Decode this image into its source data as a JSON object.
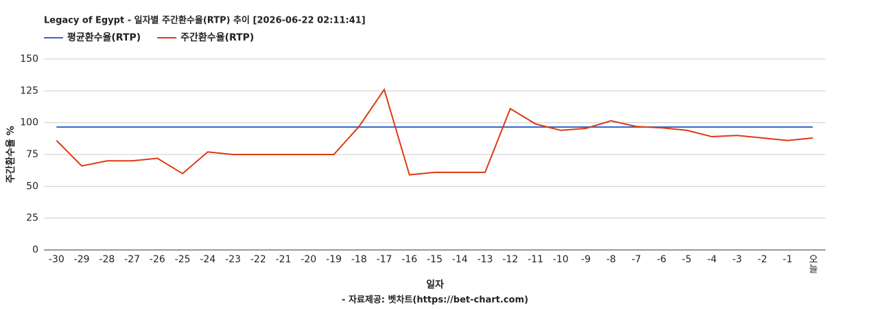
{
  "chart_data": {
    "type": "line",
    "title": "Legacy of Egypt - 일자별 주간환수율(RTP) 추이 [2026-06-22 02:11:41]",
    "x_label": "일자",
    "y_label": "주간환수율 %",
    "source": "- 자료제공: 벳차트(https://bet-chart.com)",
    "categories": [
      "-30",
      "-29",
      "-28",
      "-27",
      "-26",
      "-25",
      "-24",
      "-23",
      "-22",
      "-21",
      "-20",
      "-19",
      "-18",
      "-17",
      "-16",
      "-15",
      "-14",
      "-13",
      "-12",
      "-11",
      "-10",
      "-9",
      "-8",
      "-7",
      "-6",
      "-5",
      "-4",
      "-3",
      "-2",
      "-1",
      "오늘"
    ],
    "series": [
      {
        "name": "평균환수율(RTP)",
        "color": "#3366cc",
        "values": [
          96.6,
          96.6,
          96.6,
          96.6,
          96.6,
          96.6,
          96.6,
          96.6,
          96.6,
          96.6,
          96.6,
          96.6,
          96.6,
          96.6,
          96.6,
          96.6,
          96.6,
          96.6,
          96.6,
          96.6,
          96.6,
          96.6,
          96.6,
          96.6,
          96.6,
          96.6,
          96.6,
          96.6,
          96.6,
          96.6,
          96.6
        ]
      },
      {
        "name": "주간환수율(RTP)",
        "color": "#dc3912",
        "values": [
          86,
          66,
          70,
          70,
          72,
          60,
          77,
          75,
          75,
          75,
          75,
          75,
          97,
          126,
          59,
          61,
          61,
          61,
          111,
          99,
          94,
          95.5,
          101.5,
          97,
          96,
          94,
          89,
          90,
          88,
          86,
          88
        ]
      }
    ],
    "ylim": [
      0,
      150
    ],
    "yticks": [
      0,
      25,
      50,
      75,
      100,
      125,
      150
    ],
    "grid": true
  }
}
